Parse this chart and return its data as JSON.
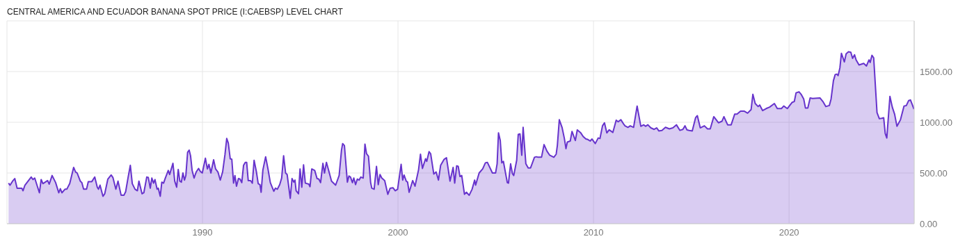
{
  "chart_data": {
    "type": "area",
    "title": "CENTRAL AMERICA AND ECUADOR BANANA SPOT PRICE (I:CAEBSP) LEVEL CHART",
    "x": [
      1980.08,
      1980.16,
      1980.29,
      1980.4,
      1980.52,
      1980.76,
      1980.82,
      1980.92,
      1981.24,
      1981.33,
      1981.42,
      1981.66,
      1981.75,
      1981.84,
      1982.08,
      1982.16,
      1982.31,
      1982.49,
      1982.65,
      1982.73,
      1982.81,
      1982.97,
      1983.06,
      1983.21,
      1983.41,
      1983.51,
      1983.59,
      1983.75,
      1983.83,
      1983.92,
      1984.07,
      1984.16,
      1984.34,
      1984.49,
      1984.62,
      1984.68,
      1984.76,
      1984.91,
      1985.0,
      1985.16,
      1985.33,
      1985.42,
      1985.57,
      1985.68,
      1985.84,
      1985.98,
      1986.07,
      1986.19,
      1986.31,
      1986.41,
      1986.55,
      1986.67,
      1986.75,
      1986.91,
      1987.0,
      1987.15,
      1987.23,
      1987.33,
      1987.41,
      1987.5,
      1987.57,
      1987.68,
      1987.74,
      1987.84,
      1987.92,
      1988.01,
      1988.1,
      1988.25,
      1988.32,
      1988.49,
      1988.58,
      1988.68,
      1988.76,
      1988.84,
      1988.92,
      1989.0,
      1989.08,
      1989.15,
      1989.24,
      1989.32,
      1989.39,
      1989.47,
      1989.57,
      1989.68,
      1989.8,
      1989.89,
      1989.99,
      1990.15,
      1990.25,
      1990.33,
      1990.43,
      1990.57,
      1990.67,
      1990.79,
      1990.91,
      1991.03,
      1991.15,
      1991.24,
      1991.32,
      1991.42,
      1991.5,
      1991.59,
      1991.66,
      1991.74,
      1991.84,
      1991.92,
      1992.01,
      1992.1,
      1992.19,
      1992.26,
      1992.34,
      1992.46,
      1992.55,
      1992.64,
      1992.76,
      1992.85,
      1992.94,
      1993.0,
      1993.09,
      1993.23,
      1993.35,
      1993.47,
      1993.65,
      1993.73,
      1993.83,
      1993.95,
      1994.05,
      1994.15,
      1994.25,
      1994.33,
      1994.49,
      1994.58,
      1994.67,
      1994.73,
      1994.79,
      1994.91,
      1994.99,
      1995.08,
      1995.17,
      1995.26,
      1995.44,
      1995.5,
      1995.59,
      1995.74,
      1995.86,
      1995.95,
      1996.04,
      1996.16,
      1996.24,
      1996.34,
      1996.46,
      1996.6,
      1996.81,
      1996.99,
      1997.11,
      1997.17,
      1997.26,
      1997.41,
      1997.49,
      1997.57,
      1997.67,
      1997.74,
      1997.83,
      1997.92,
      1998.01,
      1998.1,
      1998.22,
      1998.31,
      1998.39,
      1998.49,
      1998.6,
      1998.66,
      1998.78,
      1998.9,
      1998.99,
      1999.08,
      1999.17,
      1999.32,
      1999.48,
      1999.6,
      1999.74,
      1999.86,
      1999.98,
      2000.16,
      2000.24,
      2000.31,
      2000.42,
      2000.49,
      2000.57,
      2000.75,
      2000.87,
      2001.05,
      2001.15,
      2001.25,
      2001.41,
      2001.47,
      2001.59,
      2001.67,
      2001.83,
      2001.95,
      2002.07,
      2002.18,
      2002.36,
      2002.48,
      2002.66,
      2002.82,
      2002.9,
      2003.0,
      2003.08,
      2003.17,
      2003.26,
      2003.4,
      2003.5,
      2003.64,
      2003.79,
      2003.92,
      2003.97,
      2004.15,
      2004.33,
      2004.47,
      2004.57,
      2004.83,
      2004.99,
      2005.07,
      2005.14,
      2005.23,
      2005.31,
      2005.39,
      2005.59,
      2005.65,
      2005.76,
      2005.85,
      2005.92,
      2006.07,
      2006.15,
      2006.24,
      2006.33,
      2006.4,
      2006.54,
      2006.66,
      2006.78,
      2006.98,
      2007.08,
      2007.16,
      2007.25,
      2007.34,
      2007.47,
      2007.62,
      2007.76,
      2007.97,
      2008.09,
      2008.15,
      2008.25,
      2008.39,
      2008.51,
      2008.59,
      2008.66,
      2008.81,
      2008.9,
      2009.07,
      2009.17,
      2009.35,
      2009.47,
      2009.61,
      2009.71,
      2009.83,
      2009.92,
      2010.09,
      2010.24,
      2010.33,
      2010.46,
      2010.56,
      2010.68,
      2010.8,
      2010.99,
      2011.16,
      2011.26,
      2011.4,
      2011.55,
      2011.61,
      2011.76,
      2011.88,
      2012.05,
      2012.23,
      2012.42,
      2012.57,
      2012.66,
      2012.78,
      2012.93,
      2013.1,
      2013.23,
      2013.34,
      2013.5,
      2013.68,
      2013.88,
      2014.06,
      2014.24,
      2014.42,
      2014.57,
      2014.68,
      2014.78,
      2014.89,
      2015.05,
      2015.22,
      2015.31,
      2015.46,
      2015.67,
      2015.83,
      2015.97,
      2016.15,
      2016.39,
      2016.57,
      2016.67,
      2016.86,
      2017.04,
      2017.22,
      2017.34,
      2017.52,
      2017.7,
      2017.88,
      2018.06,
      2018.15,
      2018.27,
      2018.42,
      2018.5,
      2018.65,
      2018.83,
      2019.01,
      2019.25,
      2019.4,
      2019.61,
      2019.73,
      2019.91,
      2020.15,
      2020.27,
      2020.36,
      2020.51,
      2020.62,
      2020.75,
      2020.84,
      2020.96,
      2021.08,
      2021.2,
      2021.58,
      2021.73,
      2021.88,
      2022.06,
      2022.15,
      2022.27,
      2022.36,
      2022.44,
      2022.51,
      2022.6,
      2022.68,
      2022.83,
      2022.92,
      2023.04,
      2023.16,
      2023.25,
      2023.35,
      2023.43,
      2023.58,
      2023.82,
      2023.96,
      2024.09,
      2024.15,
      2024.24,
      2024.33,
      2024.5,
      2024.62,
      2024.74,
      2024.84,
      2024.92,
      2025.0,
      2025.16,
      2025.28,
      2025.4,
      2025.52,
      2025.7,
      2025.88,
      2026.0,
      2026.12,
      2026.21,
      2026.3,
      2026.39
    ],
    "series": [
      {
        "color": "#6633cc",
        "values": [
          400,
          380,
          420,
          445,
          350,
          350,
          325,
          380,
          460,
          435,
          450,
          305,
          435,
          395,
          425,
          390,
          475,
          405,
          305,
          345,
          305,
          340,
          340,
          395,
          555,
          510,
          500,
          420,
          405,
          340,
          340,
          415,
          415,
          460,
          360,
          340,
          380,
          270,
          295,
          440,
          480,
          455,
          340,
          420,
          280,
          280,
          315,
          450,
          575,
          395,
          340,
          325,
          420,
          295,
          305,
          460,
          455,
          350,
          450,
          400,
          435,
          340,
          350,
          270,
          410,
          400,
          450,
          525,
          485,
          595,
          420,
          360,
          535,
          420,
          410,
          500,
          430,
          475,
          705,
          725,
          670,
          525,
          450,
          510,
          545,
          515,
          500,
          645,
          540,
          585,
          500,
          630,
          540,
          510,
          430,
          510,
          680,
          840,
          795,
          640,
          635,
          400,
          475,
          370,
          445,
          440,
          405,
          575,
          605,
          605,
          425,
          425,
          400,
          625,
          510,
          395,
          385,
          310,
          530,
          660,
          540,
          405,
          320,
          350,
          340,
          385,
          450,
          670,
          500,
          485,
          250,
          445,
          410,
          430,
          325,
          295,
          540,
          360,
          580,
          400,
          390,
          365,
          540,
          525,
          445,
          440,
          405,
          595,
          500,
          605,
          520,
          420,
          380,
          475,
          725,
          790,
          770,
          410,
          470,
          460,
          405,
          450,
          385,
          440,
          430,
          460,
          450,
          785,
          690,
          665,
          405,
          350,
          340,
          565,
          385,
          485,
          450,
          425,
          290,
          350,
          355,
          325,
          340,
          585,
          430,
          480,
          420,
          410,
          310,
          425,
          370,
          530,
          685,
          545,
          640,
          615,
          710,
          690,
          490,
          510,
          430,
          575,
          635,
          650,
          420,
          555,
          400,
          570,
          565,
          465,
          475,
          290,
          310,
          280,
          340,
          430,
          380,
          500,
          540,
          600,
          605,
          500,
          500,
          590,
          895,
          820,
          600,
          615,
          405,
          400,
          590,
          495,
          475,
          625,
          880,
          885,
          675,
          950,
          590,
          550,
          550,
          655,
          660,
          655,
          655,
          655,
          780,
          715,
          675,
          655,
          685,
          770,
          1025,
          950,
          840,
          740,
          805,
          815,
          910,
          820,
          925,
          895,
          860,
          835,
          830,
          815,
          835,
          790,
          845,
          840,
          965,
          995,
          895,
          925,
          900,
          1020,
          1005,
          1025,
          980,
          965,
          950,
          965,
          950,
          1160,
          960,
          975,
          960,
          975,
          945,
          930,
          945,
          915,
          920,
          950,
          935,
          945,
          975,
          920,
          930,
          965,
          925,
          920,
          915,
          1045,
          1065,
          945,
          965,
          935,
          935,
          1055,
          995,
          1010,
          1055,
          975,
          975,
          1080,
          1080,
          1110,
          1110,
          1090,
          1125,
          1275,
          1185,
          1155,
          1170,
          1115,
          1135,
          1150,
          1185,
          1135,
          1135,
          1160,
          1135,
          1195,
          1205,
          1290,
          1300,
          1275,
          1230,
          1140,
          1140,
          1240,
          1235,
          1240,
          1205,
          1155,
          1165,
          1230,
          1410,
          1470,
          1475,
          1460,
          1535,
          1680,
          1595,
          1675,
          1695,
          1690,
          1630,
          1665,
          1615,
          1565,
          1580,
          1555,
          1615,
          1590,
          1660,
          1635,
          1095,
          1035,
          1040,
          1045,
          890,
          845,
          1255,
          1150,
          1080,
          960,
          1025,
          1160,
          1165,
          1215,
          1220,
          1175,
          1130
        ]
      }
    ],
    "xlim": [
      1980,
      2026.4
    ],
    "xticks": [
      1990,
      2000,
      2010,
      2020
    ],
    "ylim": [
      0,
      2000
    ],
    "yticks": [
      {
        "value": 0,
        "label": "0.00"
      },
      {
        "value": 500,
        "label": "500.00"
      },
      {
        "value": 1000,
        "label": "1000.00"
      },
      {
        "value": 1500,
        "label": "1500.00"
      }
    ],
    "grid": true
  }
}
